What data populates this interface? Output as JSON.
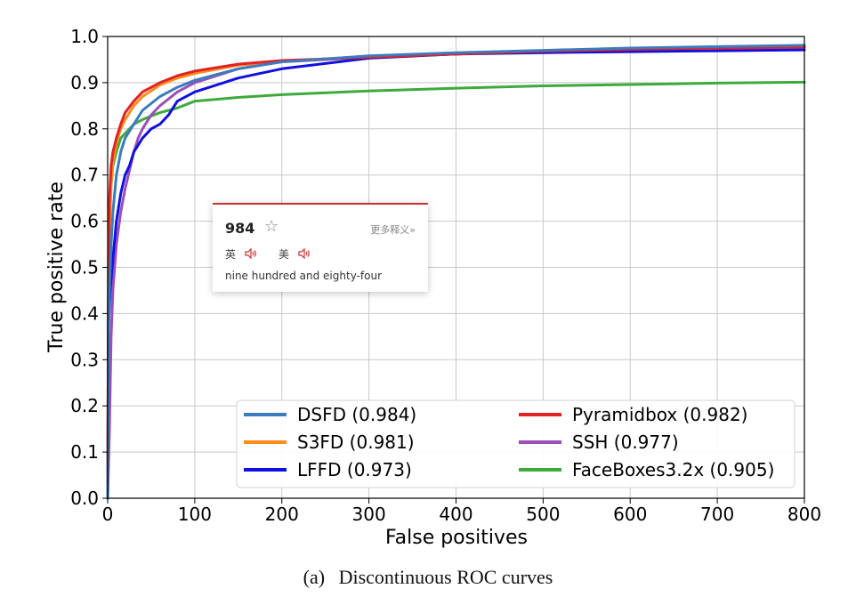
{
  "chart_data": {
    "type": "line",
    "xlabel": "False positives",
    "ylabel": "True positive rate",
    "xlim": [
      0,
      800
    ],
    "ylim": [
      0,
      1.0
    ],
    "xticks": [
      0,
      100,
      200,
      300,
      400,
      500,
      600,
      700,
      800
    ],
    "yticks": [
      0.0,
      0.1,
      0.2,
      0.3,
      0.4,
      0.5,
      0.6,
      0.7,
      0.8,
      0.9,
      1.0
    ],
    "grid": true,
    "legend_position": "lower-right",
    "series": [
      {
        "name": "DSFD (0.984)",
        "color": "#3b7bbf",
        "x": [
          0,
          1,
          2,
          4,
          6,
          10,
          15,
          20,
          30,
          40,
          60,
          80,
          100,
          150,
          200,
          300,
          400,
          500,
          600,
          700,
          800
        ],
        "y": [
          0.0,
          0.35,
          0.45,
          0.55,
          0.62,
          0.7,
          0.75,
          0.78,
          0.81,
          0.84,
          0.87,
          0.89,
          0.905,
          0.93,
          0.945,
          0.958,
          0.965,
          0.97,
          0.975,
          0.978,
          0.981
        ]
      },
      {
        "name": "Pyramidbox (0.982)",
        "color": "#e32222",
        "x": [
          0,
          1,
          2,
          4,
          6,
          10,
          15,
          20,
          30,
          40,
          60,
          80,
          100,
          150,
          200,
          300,
          400,
          500,
          600,
          700,
          800
        ],
        "y": [
          0.0,
          0.55,
          0.65,
          0.72,
          0.75,
          0.78,
          0.81,
          0.835,
          0.86,
          0.88,
          0.9,
          0.915,
          0.925,
          0.94,
          0.948,
          0.955,
          0.962,
          0.968,
          0.972,
          0.975,
          0.977
        ]
      },
      {
        "name": "S3FD (0.981)",
        "color": "#ff8c1a",
        "x": [
          0,
          1,
          2,
          4,
          6,
          10,
          15,
          20,
          30,
          40,
          60,
          80,
          100,
          150,
          200,
          300,
          400,
          500,
          600,
          700,
          800
        ],
        "y": [
          0.0,
          0.45,
          0.58,
          0.68,
          0.73,
          0.77,
          0.8,
          0.82,
          0.85,
          0.87,
          0.895,
          0.91,
          0.92,
          0.938,
          0.946,
          0.956,
          0.963,
          0.969,
          0.973,
          0.976,
          0.978
        ]
      },
      {
        "name": "SSH (0.977)",
        "color": "#9b4fb8",
        "x": [
          0,
          2,
          4,
          6,
          10,
          15,
          20,
          25,
          30,
          35,
          40,
          50,
          60,
          80,
          100,
          150,
          200,
          300,
          400,
          500,
          600,
          700,
          800
        ],
        "y": [
          0.0,
          0.15,
          0.35,
          0.45,
          0.55,
          0.62,
          0.67,
          0.71,
          0.75,
          0.78,
          0.8,
          0.83,
          0.85,
          0.88,
          0.9,
          0.93,
          0.945,
          0.955,
          0.962,
          0.968,
          0.972,
          0.975,
          0.976
        ]
      },
      {
        "name": "LFFD (0.973)",
        "color": "#1010e0",
        "x": [
          0,
          1,
          3,
          6,
          10,
          15,
          20,
          25,
          30,
          40,
          50,
          60,
          70,
          80,
          100,
          150,
          200,
          300,
          400,
          500,
          600,
          700,
          800
        ],
        "y": [
          0.0,
          0.38,
          0.45,
          0.52,
          0.6,
          0.66,
          0.7,
          0.72,
          0.75,
          0.78,
          0.8,
          0.81,
          0.83,
          0.86,
          0.88,
          0.91,
          0.93,
          0.953,
          0.962,
          0.965,
          0.967,
          0.969,
          0.971
        ]
      },
      {
        "name": "FaceBoxes3.2x (0.905)",
        "color": "#3daa3d",
        "x": [
          0,
          1,
          2,
          4,
          6,
          10,
          15,
          20,
          30,
          40,
          60,
          80,
          100,
          150,
          200,
          300,
          400,
          500,
          600,
          700,
          800
        ],
        "y": [
          0.0,
          0.5,
          0.6,
          0.68,
          0.72,
          0.75,
          0.78,
          0.79,
          0.81,
          0.82,
          0.835,
          0.845,
          0.86,
          0.868,
          0.874,
          0.882,
          0.888,
          0.893,
          0.896,
          0.899,
          0.901
        ]
      }
    ]
  },
  "caption": {
    "label": "(a)",
    "text": "Discontinuous ROC curves"
  },
  "popup": {
    "word": "984",
    "star": "☆",
    "more": "更多释义»",
    "uk_label": "英",
    "us_label": "美",
    "definition": "nine hundred and eighty-four"
  }
}
